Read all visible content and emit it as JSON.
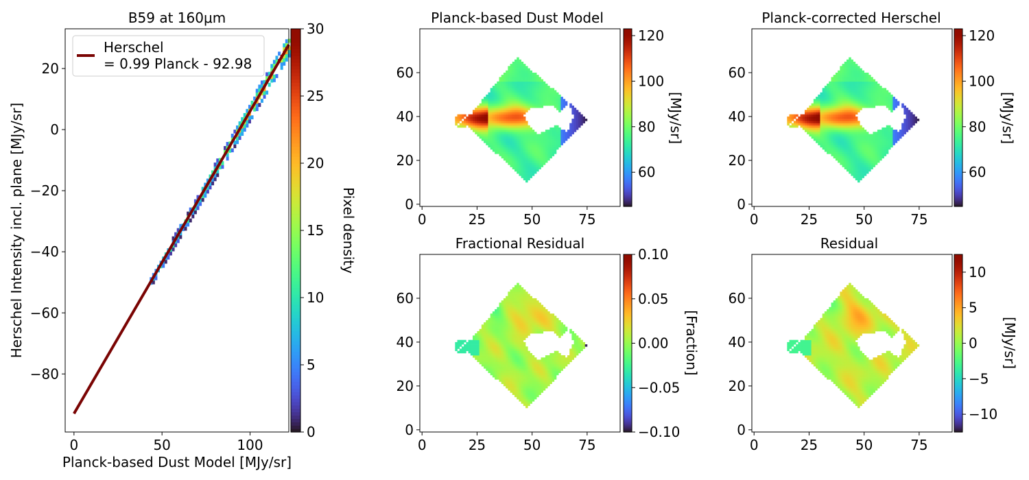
{
  "chart_data": [
    {
      "id": "scatter",
      "type": "heatmap",
      "title": "B59 at 160μm",
      "xlabel": "Planck-based Dust Model [MJy/sr]",
      "ylabel": "Herschel Intensity incl. plane [MJy/sr]",
      "xlim": [
        -5,
        122
      ],
      "ylim": [
        -99,
        33
      ],
      "xticks": [
        0,
        50,
        100
      ],
      "yticks": [
        -80,
        -60,
        -40,
        -20,
        0,
        20
      ],
      "fit_line": {
        "slope": 0.99,
        "intercept": -92.98,
        "x_range": [
          0,
          122
        ],
        "color": "#7a0403"
      },
      "legend": {
        "position": "top-left",
        "line1": "Herschel",
        "line2": "= 0.99 Planck - 92.98"
      },
      "density_band": {
        "x_range": [
          43,
          122
        ],
        "half_width": [
          1.5,
          3.5
        ],
        "peak": 29
      },
      "colorbar": {
        "label": "Pixel density",
        "range": [
          0,
          30
        ],
        "ticks": [
          0,
          5,
          10,
          15,
          20,
          25,
          30
        ],
        "cmap": "turbo"
      }
    },
    {
      "id": "dust_model",
      "type": "heatmap",
      "title": "Planck-based Dust Model",
      "xlim": [
        -1,
        90
      ],
      "ylim": [
        -1,
        80
      ],
      "xticks": [
        0,
        25,
        50,
        75
      ],
      "yticks": [
        0,
        20,
        40,
        60
      ],
      "field": "intensity",
      "colorbar": {
        "label": "[MJy/sr]",
        "range": [
          45,
          123
        ],
        "ticks": [
          60,
          80,
          100,
          120
        ],
        "cmap": "turbo"
      }
    },
    {
      "id": "corrected",
      "type": "heatmap",
      "title": "Planck-corrected Herschel",
      "xlim": [
        -1,
        90
      ],
      "ylim": [
        -1,
        80
      ],
      "xticks": [
        0,
        25,
        50,
        75
      ],
      "yticks": [
        0,
        20,
        40,
        60
      ],
      "field": "intensity",
      "colorbar": {
        "label": "[MJy/sr]",
        "range": [
          45,
          123
        ],
        "ticks": [
          60,
          80,
          100,
          120
        ],
        "cmap": "turbo"
      }
    },
    {
      "id": "fractional",
      "type": "heatmap",
      "title": "Fractional Residual",
      "xlim": [
        -1,
        90
      ],
      "ylim": [
        -1,
        80
      ],
      "xticks": [
        0,
        25,
        50,
        75
      ],
      "yticks": [
        0,
        20,
        40,
        60
      ],
      "field": "fraction",
      "colorbar": {
        "label": "[Fraction]",
        "range": [
          -0.1,
          0.1
        ],
        "ticks": [
          -0.1,
          -0.05,
          0.0,
          0.05,
          0.1
        ],
        "tick_labels": [
          "−0.10",
          "−0.05",
          "0.00",
          "0.05",
          "0.10"
        ],
        "cmap": "turbo"
      }
    },
    {
      "id": "residual",
      "type": "heatmap",
      "title": "Residual",
      "xlim": [
        -1,
        90
      ],
      "ylim": [
        -1,
        80
      ],
      "xticks": [
        0,
        25,
        50,
        75
      ],
      "yticks": [
        0,
        20,
        40,
        60
      ],
      "field": "residual",
      "colorbar": {
        "label": "[MJy/sr]",
        "range": [
          -12.5,
          12.5
        ],
        "ticks": [
          -10,
          -5,
          0,
          5,
          10
        ],
        "tick_labels": [
          "−10",
          "−5",
          "0",
          "5",
          "10"
        ],
        "cmap": "turbo"
      }
    }
  ],
  "map_region": {
    "diamond": {
      "top": [
        43,
        67
      ],
      "right": [
        75,
        39
      ],
      "bottom": [
        48,
        10
      ],
      "left": [
        19,
        37
      ]
    },
    "holes": [
      [
        [
          50,
          44
        ],
        [
          60,
          45
        ],
        [
          63,
          42
        ],
        [
          67,
          46
        ],
        [
          69,
          40
        ],
        [
          66,
          33
        ],
        [
          61,
          36
        ],
        [
          53,
          32
        ],
        [
          49,
          35
        ],
        [
          46,
          41
        ]
      ]
    ],
    "tail": {
      "x_range": [
        15,
        24
      ],
      "y_range": [
        35,
        40
      ]
    }
  }
}
